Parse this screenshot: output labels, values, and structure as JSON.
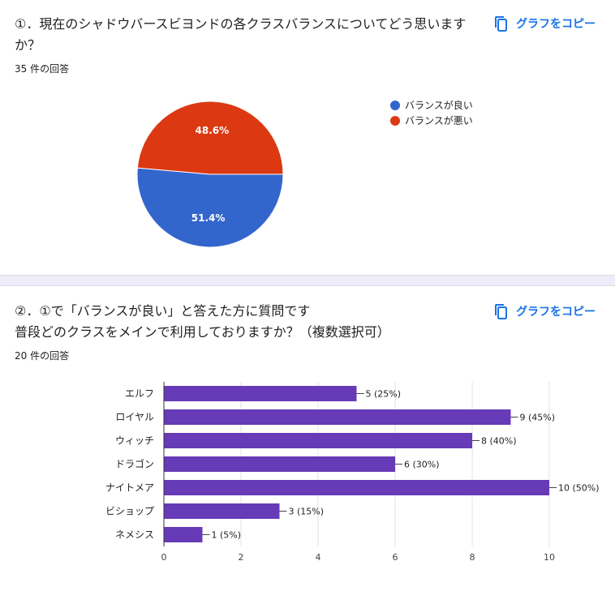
{
  "questions": [
    {
      "title": "①．現在のシャドウバースビヨンドの各クラスバランスについてどう思いますか？",
      "response_count": "35 件の回答",
      "copy_label": "グラフをコピー"
    },
    {
      "title": "②．①で「バランスが良い」と答えた方に質問です\n普段どのクラスをメインで利用しておりますか？（複数選択可）",
      "response_count": "20 件の回答",
      "copy_label": "グラフをコピー"
    }
  ],
  "colors": {
    "blue": "#3366cc",
    "red": "#dc3912",
    "purple": "#673ab7",
    "accent": "#1a73e8"
  },
  "chart_data": [
    {
      "type": "pie",
      "title": "",
      "legend_position": "right",
      "slices": [
        {
          "label": "バランスが良い",
          "value": 51.4,
          "display": "51.4%",
          "color": "#3366cc"
        },
        {
          "label": "バランスが悪い",
          "value": 48.6,
          "display": "48.6%",
          "color": "#dc3912"
        }
      ]
    },
    {
      "type": "bar",
      "orientation": "horizontal",
      "title": "",
      "xlabel": "",
      "ylabel": "",
      "categories": [
        "エルフ",
        "ロイヤル",
        "ウィッチ",
        "ドラゴン",
        "ナイトメア",
        "ビショップ",
        "ネメシス"
      ],
      "values": [
        5,
        9,
        8,
        6,
        10,
        3,
        1
      ],
      "value_labels": [
        "5 (25%)",
        "9 (45%)",
        "8 (40%)",
        "6 (30%)",
        "10 (50%)",
        "3 (15%)",
        "1 (5%)"
      ],
      "xlim": [
        0,
        10
      ],
      "xticks": [
        0,
        2,
        4,
        6,
        8,
        10
      ],
      "grid": true
    }
  ]
}
